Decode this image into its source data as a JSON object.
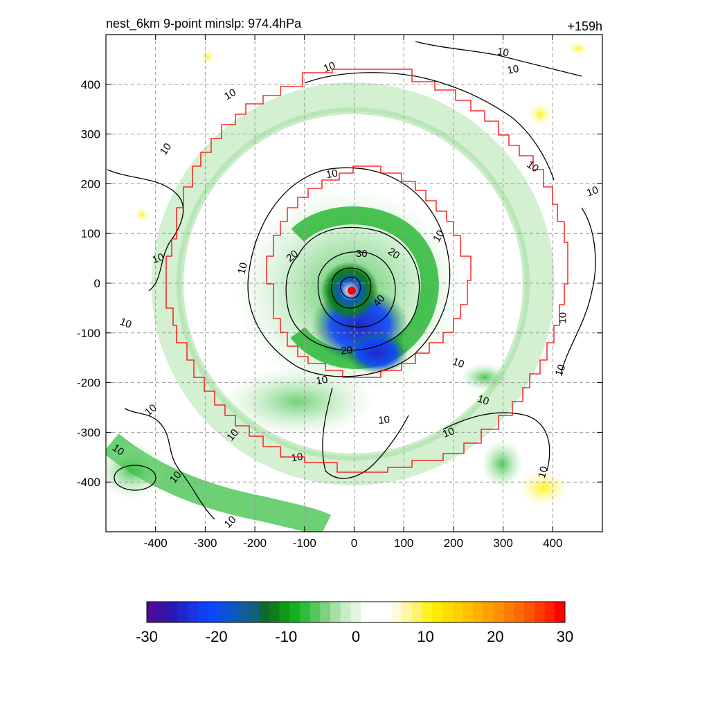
{
  "header": {
    "title": "nest_6km  9-point minslp: 974.4hPa",
    "time_label": "+159h"
  },
  "chart_data": {
    "type": "heatmap",
    "title": "nest_6km  9-point minslp: 974.4hPa",
    "time_label": "+159h",
    "xlim": [
      -500,
      500
    ],
    "ylim": [
      -500,
      500
    ],
    "x_ticks": [
      -400,
      -300,
      -200,
      -100,
      0,
      100,
      200,
      300,
      400
    ],
    "y_ticks": [
      -400,
      -300,
      -200,
      -100,
      0,
      100,
      200,
      300,
      400
    ],
    "grid": true,
    "grid_style": "dashed",
    "storm_center": {
      "x": -5,
      "y": -15,
      "color": "#ff0000"
    },
    "contour_levels": [
      10,
      20,
      30,
      40
    ],
    "contour_labels": [
      {
        "text": "10",
        "x": -250,
        "y": 380,
        "rot": -30
      },
      {
        "text": "10",
        "x": -380,
        "y": 270,
        "rot": -55
      },
      {
        "text": "10",
        "x": -395,
        "y": 50,
        "rot": -20
      },
      {
        "text": "10",
        "x": -460,
        "y": -80,
        "rot": 20
      },
      {
        "text": "10",
        "x": -410,
        "y": -255,
        "rot": -40
      },
      {
        "text": "10",
        "x": -475,
        "y": -335,
        "rot": 35
      },
      {
        "text": "10",
        "x": -360,
        "y": -390,
        "rot": -50
      },
      {
        "text": "10",
        "x": -250,
        "y": -480,
        "rot": -45
      },
      {
        "text": "10",
        "x": -50,
        "y": 435,
        "rot": -20
      },
      {
        "text": "10",
        "x": -45,
        "y": 220,
        "rot": -10
      },
      {
        "text": "10",
        "x": -225,
        "y": 30,
        "rot": -75
      },
      {
        "text": "10",
        "x": -65,
        "y": -195,
        "rot": -10
      },
      {
        "text": "10",
        "x": 60,
        "y": -275,
        "rot": -5
      },
      {
        "text": "10",
        "x": -245,
        "y": -305,
        "rot": -50
      },
      {
        "text": "10",
        "x": -115,
        "y": -350,
        "rot": -10
      },
      {
        "text": "10",
        "x": 170,
        "y": 95,
        "rot": -60
      },
      {
        "text": "10",
        "x": 210,
        "y": -160,
        "rot": 20
      },
      {
        "text": "10",
        "x": 260,
        "y": -235,
        "rot": 20
      },
      {
        "text": "10",
        "x": 190,
        "y": -300,
        "rot": -20
      },
      {
        "text": "10",
        "x": 300,
        "y": 465,
        "rot": 10
      },
      {
        "text": "10",
        "x": 320,
        "y": 430,
        "rot": -10
      },
      {
        "text": "10",
        "x": 360,
        "y": 235,
        "rot": 35
      },
      {
        "text": "10",
        "x": 480,
        "y": 185,
        "rot": -20
      },
      {
        "text": "10",
        "x": 420,
        "y": -70,
        "rot": -90
      },
      {
        "text": "10",
        "x": 415,
        "y": -175,
        "rot": -70
      },
      {
        "text": "10",
        "x": 380,
        "y": -380,
        "rot": -75
      },
      {
        "text": "20",
        "x": -125,
        "y": 55,
        "rot": -40
      },
      {
        "text": "20",
        "x": 80,
        "y": 60,
        "rot": 35
      },
      {
        "text": "20",
        "x": -15,
        "y": -135,
        "rot": -5
      },
      {
        "text": "30",
        "x": 15,
        "y": 60,
        "rot": 0
      },
      {
        "text": "40",
        "x": 50,
        "y": -35,
        "rot": -50
      }
    ],
    "colorbar": {
      "ticks": [
        -30,
        -20,
        -10,
        0,
        10,
        20,
        30
      ],
      "min": -30,
      "max": 30,
      "colors": [
        "#4b0b9b",
        "#3a129f",
        "#2a1ab3",
        "#1f27c8",
        "#1b34e0",
        "#0f3ff5",
        "#0d46fd",
        "#0e4fe0",
        "#0c58c2",
        "#115e9a",
        "#145f7a",
        "#10682e",
        "#0e7f18",
        "#0d9a16",
        "#13b020",
        "#2fbc3a",
        "#55c65a",
        "#7fd27d",
        "#a6e0a4",
        "#c8ecc6",
        "#e2f5e1",
        "#ffffff",
        "#ffffff",
        "#ffffff",
        "#fffbd9",
        "#fff7a6",
        "#fff46b",
        "#fff21f",
        "#ffea00",
        "#ffdc00",
        "#ffcf00",
        "#ffc000",
        "#ffb000",
        "#ffa000",
        "#ff9000",
        "#ff7d00",
        "#ff6900",
        "#ff5400",
        "#ff3b00",
        "#ff2100",
        "#ff0000"
      ]
    }
  }
}
